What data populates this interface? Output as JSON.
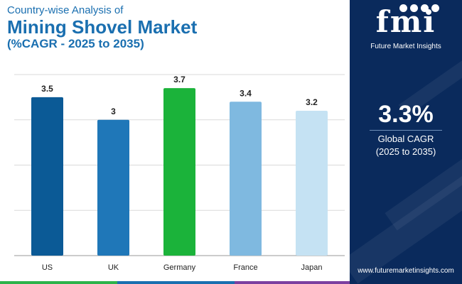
{
  "header": {
    "subtitle": "Country-wise Analysis of",
    "title": "Mining Shovel Market",
    "range": "(%CAGR - 2025 to 2035)"
  },
  "brand": {
    "logo": "fmi",
    "name": "Future Market Insights",
    "website": "www.futuremarketinsights.com"
  },
  "kpi": {
    "value": "3.3%",
    "label": "Global CAGR",
    "period": "(2025 to 2035)"
  },
  "colors": {
    "title": "#1a6fb0",
    "panel": "#0a2a5c",
    "gridline": "#d9d9d9",
    "bar_text": "#222222"
  },
  "chart_data": {
    "type": "bar",
    "title": "Mining Shovel Market",
    "xlabel": "",
    "ylabel": "",
    "ylim": [
      0,
      4
    ],
    "grid": true,
    "categories": [
      "US",
      "UK",
      "Germany",
      "France",
      "Japan"
    ],
    "values": [
      3.5,
      3,
      3.7,
      3.4,
      3.2
    ],
    "labels": [
      "3.5",
      "3",
      "3.7",
      "3.4",
      "3.2"
    ],
    "bar_colors": [
      "#0b5a96",
      "#1f77b8",
      "#1bb33a",
      "#7fb9e0",
      "#c5e2f3"
    ]
  }
}
